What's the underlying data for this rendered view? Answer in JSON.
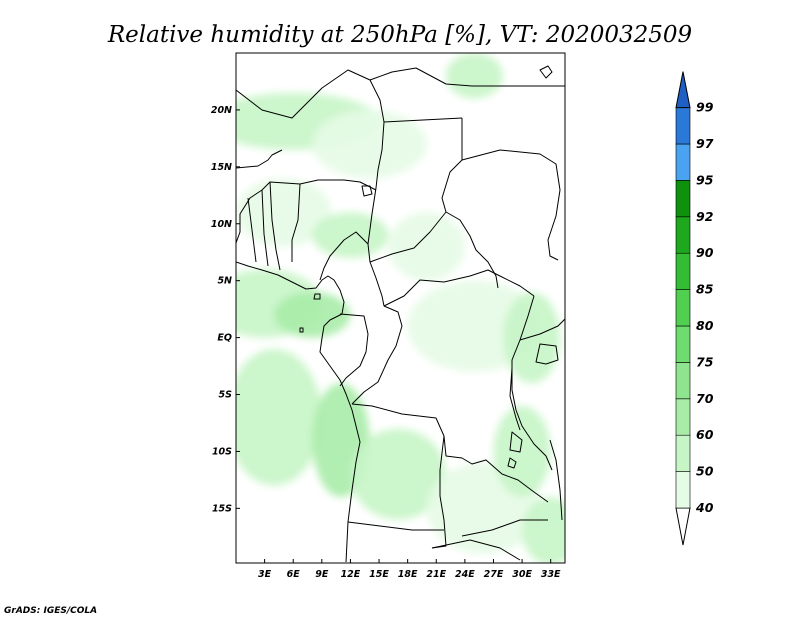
{
  "title": "Relative humidity at 250hPa [%], VT: 2020032509",
  "credit": "GrADS: IGES/COLA",
  "map": {
    "lon_range": [
      0,
      34.5
    ],
    "lat_range": [
      -19.8,
      25
    ],
    "x_ticks": [
      {
        "lon": 3,
        "label": "3E"
      },
      {
        "lon": 6,
        "label": "6E"
      },
      {
        "lon": 9,
        "label": "9E"
      },
      {
        "lon": 12,
        "label": "12E"
      },
      {
        "lon": 15,
        "label": "15E"
      },
      {
        "lon": 18,
        "label": "18E"
      },
      {
        "lon": 21,
        "label": "21E"
      },
      {
        "lon": 24,
        "label": "24E"
      },
      {
        "lon": 27,
        "label": "27E"
      },
      {
        "lon": 30,
        "label": "30E"
      },
      {
        "lon": 33,
        "label": "33E"
      }
    ],
    "y_ticks": [
      {
        "lat": 20,
        "label": "20N"
      },
      {
        "lat": 15,
        "label": "15N"
      },
      {
        "lat": 10,
        "label": "10N"
      },
      {
        "lat": 5,
        "label": "5N"
      },
      {
        "lat": 0,
        "label": "EQ"
      },
      {
        "lat": -5,
        "label": "5S"
      },
      {
        "lat": -10,
        "label": "10S"
      },
      {
        "lat": -15,
        "label": "15S"
      }
    ]
  },
  "colorbar": {
    "levels": [
      {
        "label": "40",
        "color": "#ffffff"
      },
      {
        "label": "50",
        "color": "#e6fbe6"
      },
      {
        "label": "60",
        "color": "#c6f5c6"
      },
      {
        "label": "70",
        "color": "#a8eca8"
      },
      {
        "label": "75",
        "color": "#8fe48f"
      },
      {
        "label": "80",
        "color": "#6edc6e"
      },
      {
        "label": "85",
        "color": "#50cf50"
      },
      {
        "label": "90",
        "color": "#34bc34"
      },
      {
        "label": "92",
        "color": "#1ea81e"
      },
      {
        "label": "95",
        "color": "#0e920e"
      },
      {
        "label": "97",
        "color": "#4aa3f0"
      },
      {
        "label": "99",
        "color": "#2a78d8"
      }
    ],
    "top_color": "#1f5fc4",
    "bottom_color": "#ffffff"
  },
  "humidity_fields": [
    {
      "lon": 6,
      "lat": 19,
      "rlon": 9,
      "rlat": 2.5,
      "level": 2
    },
    {
      "lon": 14,
      "lat": 17,
      "rlon": 6,
      "rlat": 3,
      "level": 1
    },
    {
      "lon": 25,
      "lat": 23,
      "rlon": 3,
      "rlat": 2,
      "level": 2
    },
    {
      "lon": 5,
      "lat": 11,
      "rlon": 5,
      "rlat": 3,
      "level": 1
    },
    {
      "lon": 12,
      "lat": 9,
      "rlon": 4,
      "rlat": 2,
      "level": 2
    },
    {
      "lon": 3,
      "lat": 3,
      "rlon": 6,
      "rlat": 3,
      "level": 2
    },
    {
      "lon": 8,
      "lat": 2,
      "rlon": 4,
      "rlat": 2,
      "level": 3
    },
    {
      "lon": 4,
      "lat": -7,
      "rlon": 5,
      "rlat": 6,
      "level": 2
    },
    {
      "lon": 11,
      "lat": -9,
      "rlon": 3,
      "rlat": 5,
      "level": 3
    },
    {
      "lon": 17,
      "lat": -12,
      "rlon": 5,
      "rlat": 4,
      "level": 2
    },
    {
      "lon": 25,
      "lat": 1,
      "rlon": 7,
      "rlat": 4,
      "level": 1
    },
    {
      "lon": 31,
      "lat": 0,
      "rlon": 3,
      "rlat": 4,
      "level": 2
    },
    {
      "lon": 20,
      "lat": 8,
      "rlon": 4,
      "rlat": 3,
      "level": 1
    },
    {
      "lon": 26,
      "lat": -15,
      "rlon": 6,
      "rlat": 4,
      "level": 1
    },
    {
      "lon": 30,
      "lat": -10,
      "rlon": 3,
      "rlat": 4,
      "level": 2
    },
    {
      "lon": 33,
      "lat": -17,
      "rlon": 3,
      "rlat": 3,
      "level": 2
    }
  ]
}
